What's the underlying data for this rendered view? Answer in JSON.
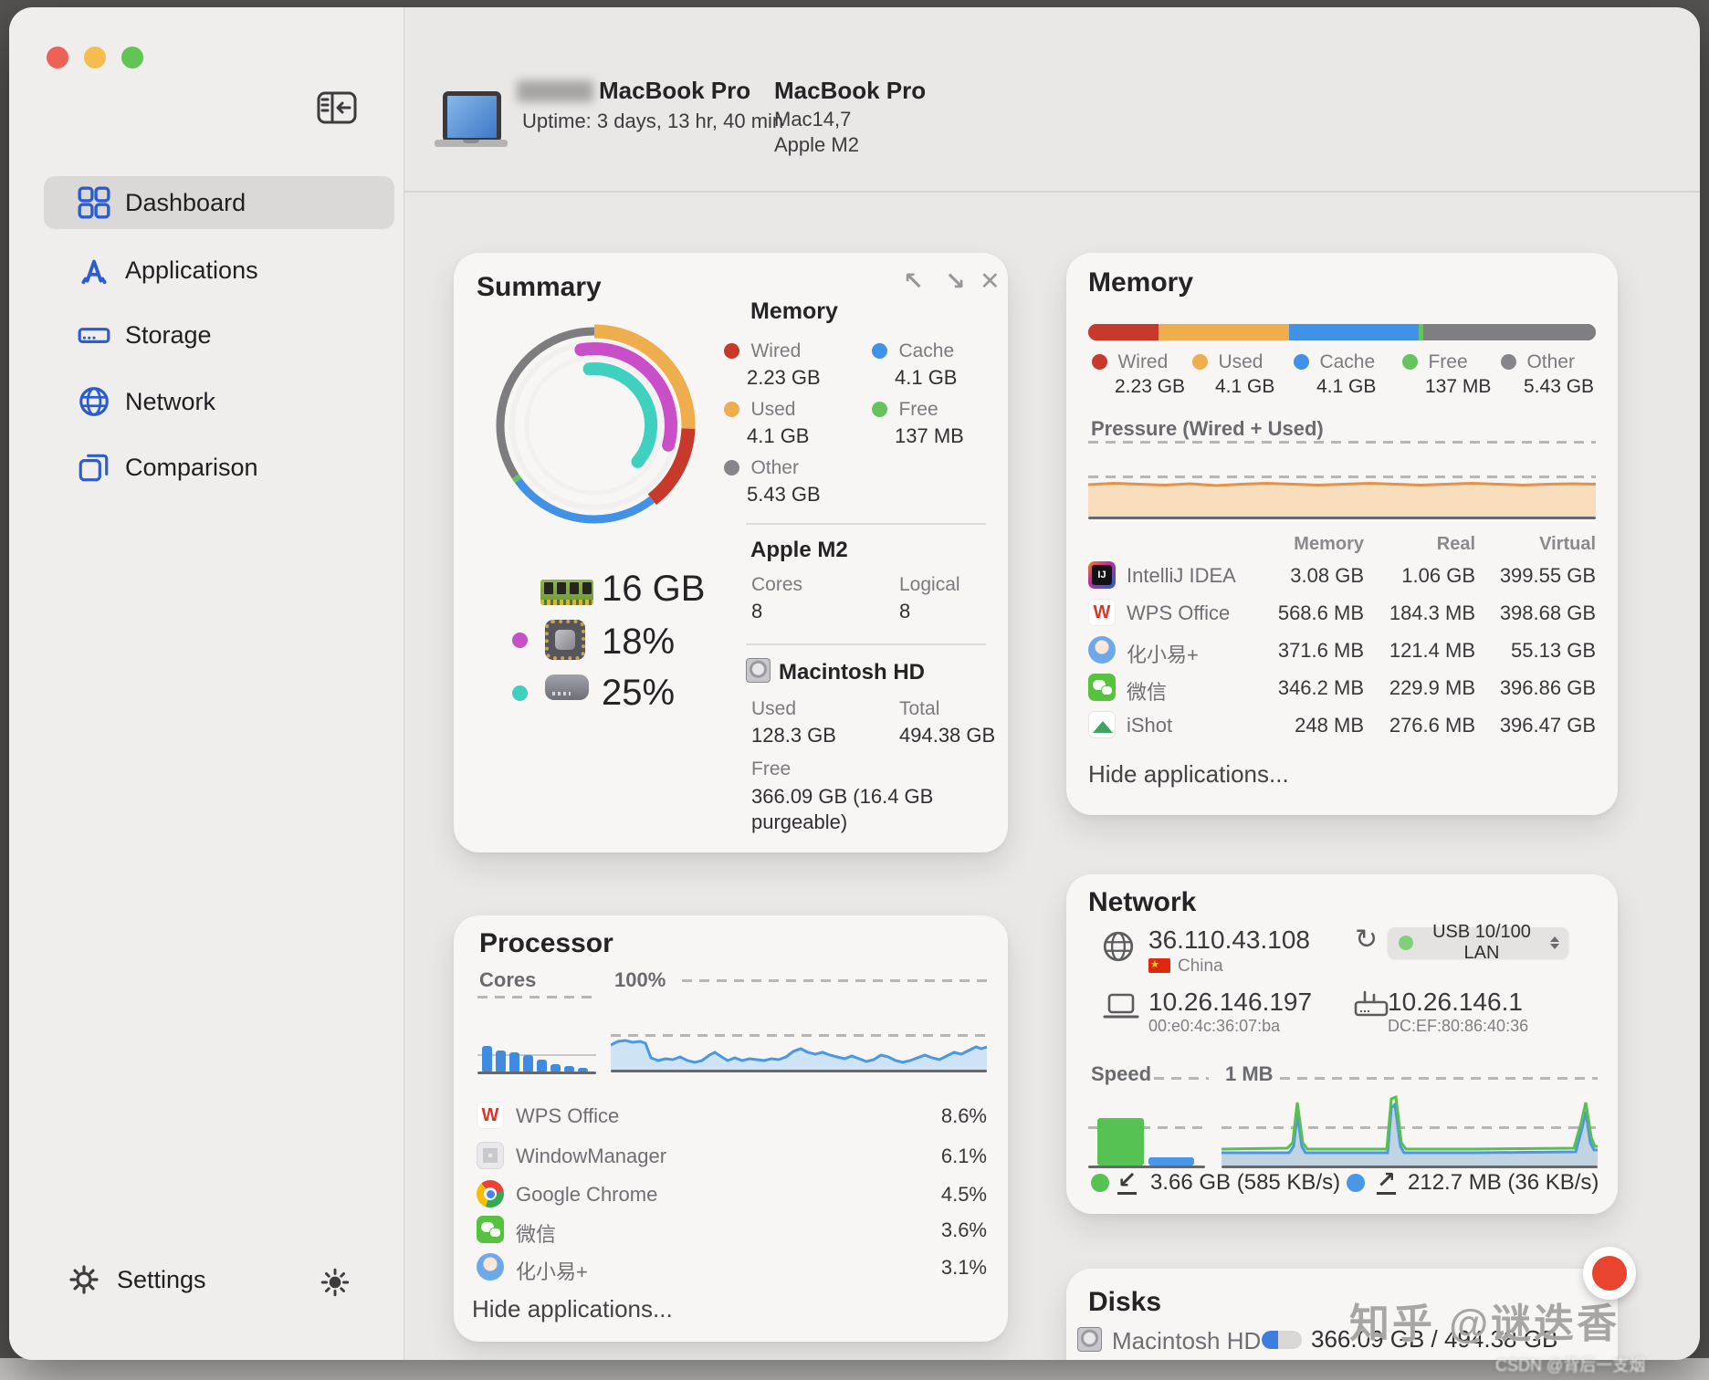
{
  "colors": {
    "accent_blue": "#2b5cd0",
    "wired": "#c7392a",
    "used": "#efae4e",
    "cache": "#4191e6",
    "free": "#67c35d",
    "other": "#86868a",
    "cpu_ring": "#c94fc9",
    "disk_ring": "#3fd0c0",
    "pressure_fill": "#f8ddbd",
    "pressure_line": "#e2924a",
    "chart_blue": "#4a97e6",
    "net_green": "#57c14d"
  },
  "sidebar": {
    "items": [
      {
        "label": "Dashboard"
      },
      {
        "label": "Applications"
      },
      {
        "label": "Storage"
      },
      {
        "label": "Network"
      },
      {
        "label": "Comparison"
      }
    ],
    "settings_label": "Settings"
  },
  "header": {
    "device_title": "MacBook Pro",
    "uptime": "Uptime: 3 days, 13 hr, 40 min",
    "model_name": "MacBook Pro",
    "model_id": "Mac14,7",
    "chip": "Apple M2"
  },
  "summary": {
    "title": "Summary",
    "memory_header": "Memory",
    "legend": [
      {
        "label": "Wired",
        "value": "2.23 GB",
        "color": "#c7392a"
      },
      {
        "label": "Cache",
        "value": "4.1 GB",
        "color": "#4191e6"
      },
      {
        "label": "Used",
        "value": "4.1 GB",
        "color": "#efae4e"
      },
      {
        "label": "Free",
        "value": "137 MB",
        "color": "#67c35d"
      },
      {
        "label": "Other",
        "value": "5.43 GB",
        "color": "#86868a"
      }
    ],
    "ram_total": "16 GB",
    "cpu_usage": "18%",
    "cpu_dot_color": "#c94fc9",
    "disk_usage": "25%",
    "disk_dot_color": "#3fd0c0",
    "chip_section": {
      "title": "Apple M2",
      "cores_label": "Cores",
      "cores": "8",
      "logical_label": "Logical",
      "logical": "8"
    },
    "disk_section": {
      "title": "Macintosh HD",
      "used_label": "Used",
      "used": "128.3 GB",
      "total_label": "Total",
      "total": "494.38 GB",
      "free_label": "Free",
      "free": "366.09 GB (16.4 GB purgeable)"
    }
  },
  "memory": {
    "title": "Memory",
    "bar": [
      {
        "label": "Wired",
        "pct": 13.9,
        "color": "#c7392a"
      },
      {
        "label": "Used",
        "pct": 25.6,
        "color": "#efae4e"
      },
      {
        "label": "Cache",
        "pct": 25.6,
        "color": "#4191e6"
      },
      {
        "label": "Free",
        "pct": 0.9,
        "color": "#67c35d"
      },
      {
        "label": "Other",
        "pct": 34.0,
        "color": "#7f7f82"
      }
    ],
    "legend": [
      {
        "label": "Wired",
        "value": "2.23 GB",
        "color": "#c7392a"
      },
      {
        "label": "Used",
        "value": "4.1 GB",
        "color": "#efae4e"
      },
      {
        "label": "Cache",
        "value": "4.1 GB",
        "color": "#4191e6"
      },
      {
        "label": "Free",
        "value": "137 MB",
        "color": "#67c35d"
      },
      {
        "label": "Other",
        "value": "5.43 GB",
        "color": "#86868a"
      }
    ],
    "pressure_label": "Pressure (Wired + Used)",
    "table": {
      "headers": [
        "Memory",
        "Real",
        "Virtual"
      ],
      "apps": [
        {
          "name": "IntelliJ IDEA",
          "memory": "3.08 GB",
          "real": "1.06 GB",
          "virtual": "399.55 GB"
        },
        {
          "name": "WPS Office",
          "memory": "568.6 MB",
          "real": "184.3 MB",
          "virtual": "398.68 GB"
        },
        {
          "name": "化小易+",
          "memory": "371.6 MB",
          "real": "121.4 MB",
          "virtual": "55.13 GB"
        },
        {
          "name": "微信",
          "memory": "346.2 MB",
          "real": "229.9 MB",
          "virtual": "396.86 GB"
        },
        {
          "name": "iShot",
          "memory": "248 MB",
          "real": "276.6 MB",
          "virtual": "396.47 GB"
        }
      ]
    },
    "hide_link": "Hide applications..."
  },
  "processor": {
    "title": "Processor",
    "cores_label": "Cores",
    "scale_label": "100%",
    "cores_bars": [
      28,
      23,
      21,
      18,
      13,
      8,
      6,
      4
    ],
    "apps": [
      {
        "name": "WPS Office",
        "cpu": "8.6%"
      },
      {
        "name": "WindowManager",
        "cpu": "6.1%"
      },
      {
        "name": "Google Chrome",
        "cpu": "4.5%"
      },
      {
        "name": "微信",
        "cpu": "3.6%"
      },
      {
        "name": "化小易+",
        "cpu": "3.1%"
      }
    ],
    "hide_link": "Hide applications..."
  },
  "network": {
    "title": "Network",
    "public_ip": "36.110.43.108",
    "country": "China",
    "interface": "USB 10/100 LAN",
    "local_ip": "10.26.146.197",
    "local_mac": "00:e0:4c:36:07:ba",
    "router_ip": "10.26.146.1",
    "router_mac": "DC:EF:80:86:40:36",
    "speed_label": "Speed",
    "scale_label": "1 MB",
    "download": "3.66 GB (585 KB/s)",
    "upload": "212.7 MB (36 KB/s)"
  },
  "disks": {
    "title": "Disks",
    "volume": "Macintosh HD",
    "usage": "366.09 GB / 494.38 GB"
  },
  "watermarks": {
    "zhihu": "知乎 @谜迭香",
    "csdn": "CSDN @背后一支烟"
  }
}
